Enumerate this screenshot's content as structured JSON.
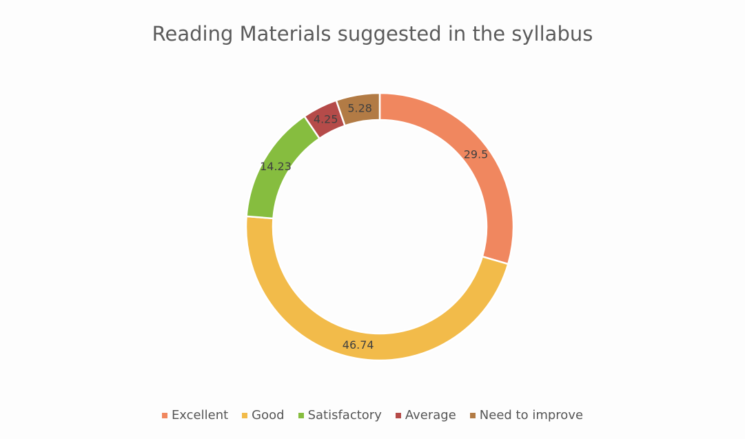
{
  "chart_data": {
    "type": "pie",
    "variant": "donut",
    "title": "Reading Materials suggested in the syllabus",
    "categories": [
      "Excellent",
      "Good",
      "Satisfactory",
      "Average",
      "Need to improve"
    ],
    "values": [
      29.5,
      46.74,
      14.23,
      4.25,
      5.28
    ],
    "data_labels": [
      "29.5",
      "46.74",
      "14.23",
      "4.25",
      "5.28"
    ],
    "colors": [
      "#f0875f",
      "#f2bb4a",
      "#86bd3f",
      "#b54b49",
      "#b27b45"
    ],
    "legend_position": "bottom"
  }
}
